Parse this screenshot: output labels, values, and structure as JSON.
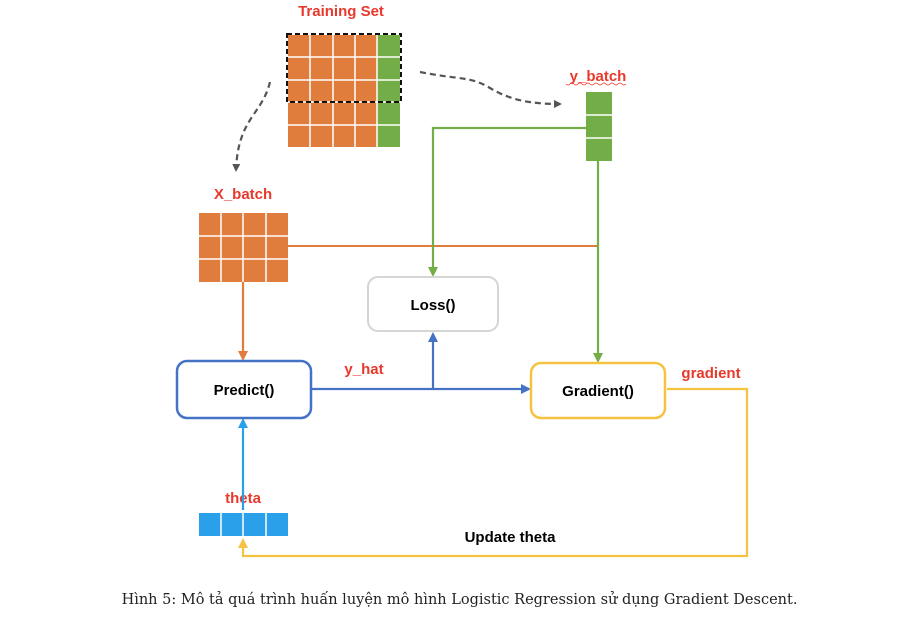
{
  "labels": {
    "training_set": "Training Set",
    "y_batch": "y_batch",
    "x_batch": "X_batch",
    "loss": "Loss()",
    "predict": "Predict()",
    "y_hat": "y_hat",
    "gradient_fn": "Gradient()",
    "gradient": "gradient",
    "theta": "theta",
    "update_theta": "Update theta"
  },
  "caption": "Hình 5: Mô tả quá trình huấn luyện mô hình Logistic Regression sử dụng Gradient Descent.",
  "colors": {
    "orange": "#e07c3c",
    "green": "#72ad47",
    "blue_box": "#4472c4",
    "gray_box": "#d5d5d5",
    "yellow": "#f5c241",
    "light_blue": "#2ba0ea",
    "dashed": "#555555",
    "label_red": "#e8392c"
  }
}
